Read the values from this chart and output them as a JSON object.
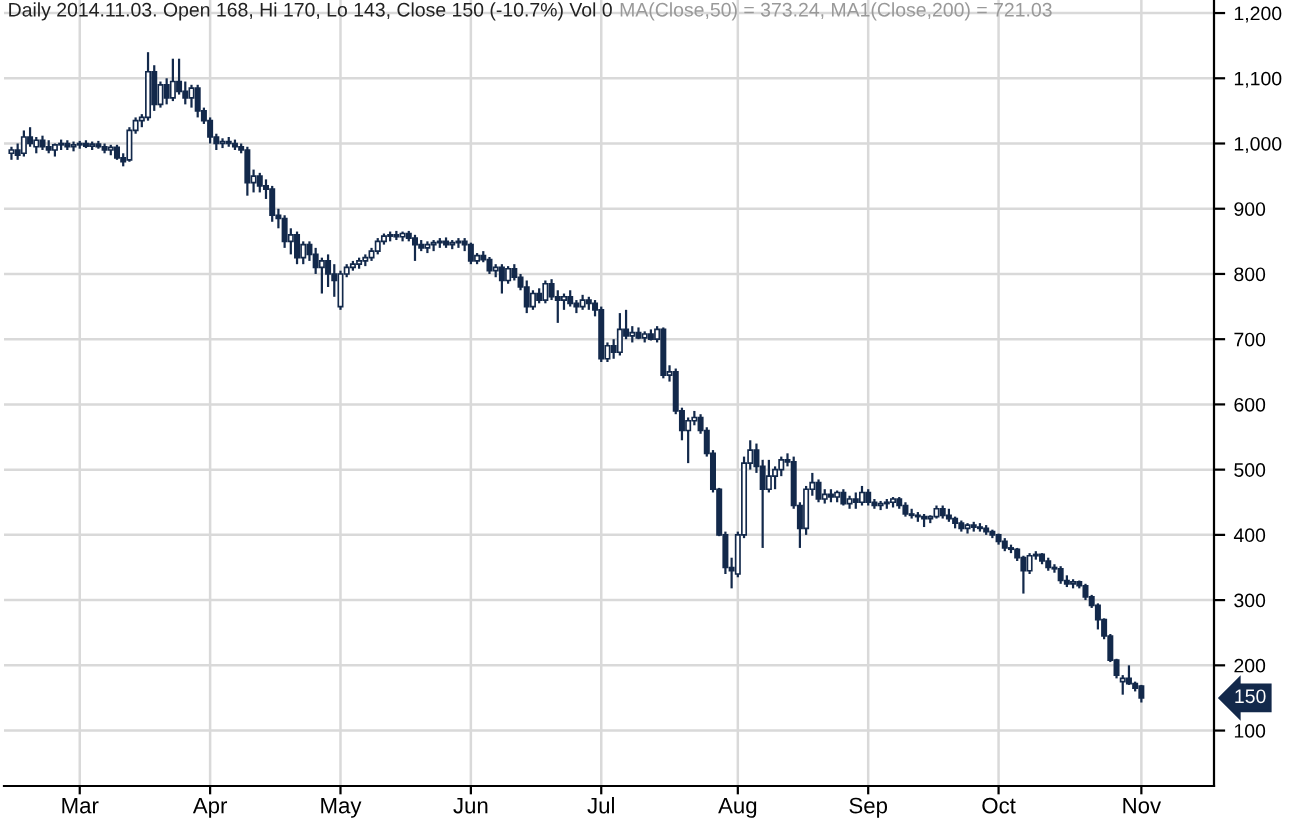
{
  "chart_data": {
    "type": "candlestick",
    "title": "Daily 2014.11.03. Open 168, Hi 170, Lo 143, Close 150 (-10.7%) Vol 0",
    "subtitle": "MA(Close,50) = 373.24, MA1(Close,200) = 721.03",
    "categories": [
      null,
      null,
      null,
      null,
      null,
      null,
      null,
      null,
      null,
      null,
      null,
      "Mar",
      null,
      null,
      null,
      null,
      null,
      null,
      null,
      null,
      null,
      null,
      null,
      null,
      null,
      null,
      null,
      null,
      null,
      null,
      null,
      null,
      "Apr",
      null,
      null,
      null,
      null,
      null,
      null,
      null,
      null,
      null,
      null,
      null,
      null,
      null,
      null,
      null,
      null,
      null,
      null,
      null,
      null,
      "May",
      null,
      null,
      null,
      null,
      null,
      null,
      null,
      null,
      null,
      null,
      null,
      null,
      null,
      null,
      null,
      null,
      null,
      null,
      null,
      null,
      "Jun",
      null,
      null,
      null,
      null,
      null,
      null,
      null,
      null,
      null,
      null,
      null,
      null,
      null,
      null,
      null,
      null,
      null,
      null,
      null,
      null,
      "Jul",
      null,
      null,
      null,
      null,
      null,
      null,
      null,
      null,
      null,
      null,
      null,
      null,
      null,
      null,
      null,
      null,
      null,
      null,
      null,
      null,
      null,
      "Aug",
      null,
      null,
      null,
      null,
      null,
      null,
      null,
      null,
      null,
      null,
      null,
      null,
      null,
      null,
      null,
      null,
      null,
      null,
      null,
      null,
      "Sep",
      null,
      null,
      null,
      null,
      null,
      null,
      null,
      null,
      null,
      null,
      null,
      null,
      null,
      null,
      null,
      null,
      null,
      null,
      null,
      null,
      "Oct",
      null,
      null,
      null,
      null,
      null,
      null,
      null,
      null,
      null,
      null,
      null,
      null,
      null,
      null,
      null,
      null,
      null,
      null,
      null,
      null,
      null,
      null,
      "Nov",
      null,
      null,
      null,
      null,
      null,
      null,
      null,
      null,
      null,
      null,
      null
    ],
    "series": [
      {
        "color": "#13294b",
        "ohlc": [
          [
            985,
            995,
            975,
            990
          ],
          [
            990,
            1000,
            975,
            982
          ],
          [
            985,
            1020,
            980,
            1010
          ],
          [
            1010,
            1025,
            995,
            1000
          ],
          [
            995,
            1010,
            985,
            1005
          ],
          [
            1005,
            1012,
            990,
            995
          ],
          [
            995,
            1005,
            985,
            990
          ],
          [
            990,
            1000,
            980,
            998
          ],
          [
            998,
            1006,
            990,
            1000
          ],
          [
            1000,
            1005,
            990,
            995
          ],
          [
            995,
            1003,
            988,
            998
          ],
          [
            998,
            1004,
            992,
            1000
          ],
          [
            1000,
            1005,
            993,
            996
          ],
          [
            996,
            1003,
            990,
            999
          ],
          [
            999,
            1004,
            992,
            995
          ],
          [
            995,
            1000,
            985,
            990
          ],
          [
            990,
            998,
            982,
            994
          ],
          [
            994,
            998,
            975,
            978
          ],
          [
            978,
            985,
            965,
            972
          ],
          [
            975,
            1025,
            972,
            1020
          ],
          [
            1020,
            1040,
            1015,
            1035
          ],
          [
            1035,
            1045,
            1025,
            1040
          ],
          [
            1040,
            1140,
            1035,
            1110
          ],
          [
            1110,
            1120,
            1050,
            1060
          ],
          [
            1060,
            1095,
            1055,
            1090
          ],
          [
            1090,
            1100,
            1060,
            1070
          ],
          [
            1070,
            1130,
            1065,
            1095
          ],
          [
            1095,
            1130,
            1075,
            1080
          ],
          [
            1080,
            1095,
            1060,
            1070
          ],
          [
            1070,
            1090,
            1055,
            1085
          ],
          [
            1085,
            1090,
            1040,
            1050
          ],
          [
            1050,
            1055,
            1030,
            1035
          ],
          [
            1035,
            1040,
            1000,
            1010
          ],
          [
            1010,
            1015,
            990,
            1000
          ],
          [
            1000,
            1008,
            993,
            1003
          ],
          [
            1003,
            1010,
            995,
            1000
          ],
          [
            1000,
            1006,
            990,
            995
          ],
          [
            995,
            1000,
            985,
            990
          ],
          [
            990,
            995,
            920,
            940
          ],
          [
            940,
            960,
            925,
            950
          ],
          [
            950,
            955,
            925,
            935
          ],
          [
            935,
            945,
            915,
            930
          ],
          [
            930,
            935,
            880,
            890
          ],
          [
            890,
            900,
            870,
            885
          ],
          [
            885,
            890,
            840,
            850
          ],
          [
            850,
            870,
            830,
            860
          ],
          [
            860,
            865,
            815,
            825
          ],
          [
            825,
            850,
            815,
            845
          ],
          [
            845,
            850,
            820,
            830
          ],
          [
            830,
            840,
            800,
            810
          ],
          [
            810,
            825,
            770,
            820
          ],
          [
            820,
            830,
            780,
            800
          ],
          [
            800,
            815,
            765,
            790
          ],
          [
            750,
            805,
            745,
            800
          ],
          [
            800,
            815,
            795,
            810
          ],
          [
            810,
            820,
            805,
            815
          ],
          [
            815,
            825,
            808,
            820
          ],
          [
            820,
            830,
            812,
            825
          ],
          [
            825,
            840,
            820,
            835
          ],
          [
            835,
            855,
            830,
            850
          ],
          [
            850,
            862,
            845,
            858
          ],
          [
            858,
            865,
            850,
            860
          ],
          [
            860,
            866,
            852,
            857
          ],
          [
            857,
            865,
            850,
            862
          ],
          [
            862,
            866,
            850,
            855
          ],
          [
            855,
            860,
            820,
            845
          ],
          [
            845,
            852,
            835,
            840
          ],
          [
            840,
            850,
            832,
            845
          ],
          [
            845,
            852,
            835,
            848
          ],
          [
            848,
            855,
            840,
            850
          ],
          [
            850,
            856,
            840,
            845
          ],
          [
            845,
            852,
            838,
            848
          ],
          [
            848,
            855,
            840,
            850
          ],
          [
            850,
            855,
            835,
            845
          ],
          [
            845,
            848,
            815,
            820
          ],
          [
            820,
            832,
            815,
            828
          ],
          [
            828,
            835,
            818,
            822
          ],
          [
            822,
            826,
            800,
            805
          ],
          [
            805,
            815,
            795,
            810
          ],
          [
            810,
            815,
            770,
            790
          ],
          [
            790,
            812,
            785,
            808
          ],
          [
            808,
            815,
            790,
            795
          ],
          [
            795,
            800,
            775,
            780
          ],
          [
            780,
            790,
            740,
            750
          ],
          [
            750,
            775,
            745,
            770
          ],
          [
            770,
            778,
            755,
            760
          ],
          [
            760,
            790,
            755,
            785
          ],
          [
            785,
            792,
            760,
            765
          ],
          [
            765,
            775,
            725,
            760
          ],
          [
            760,
            770,
            745,
            765
          ],
          [
            765,
            775,
            750,
            755
          ],
          [
            755,
            760,
            740,
            750
          ],
          [
            750,
            768,
            745,
            760
          ],
          [
            760,
            765,
            745,
            755
          ],
          [
            755,
            760,
            735,
            745
          ],
          [
            745,
            750,
            665,
            670
          ],
          [
            670,
            695,
            665,
            690
          ],
          [
            690,
            700,
            670,
            680
          ],
          [
            680,
            740,
            675,
            715
          ],
          [
            715,
            745,
            700,
            705
          ],
          [
            705,
            720,
            695,
            710
          ],
          [
            710,
            718,
            700,
            702
          ],
          [
            702,
            712,
            695,
            708
          ],
          [
            708,
            715,
            698,
            700
          ],
          [
            700,
            720,
            695,
            715
          ],
          [
            715,
            718,
            640,
            645
          ],
          [
            645,
            660,
            635,
            650
          ],
          [
            650,
            655,
            585,
            590
          ],
          [
            590,
            595,
            545,
            560
          ],
          [
            560,
            580,
            510,
            575
          ],
          [
            575,
            590,
            568,
            580
          ],
          [
            580,
            585,
            555,
            560
          ],
          [
            560,
            565,
            520,
            525
          ],
          [
            525,
            530,
            465,
            470
          ],
          [
            470,
            472,
            398,
            400
          ],
          [
            400,
            405,
            340,
            350
          ],
          [
            350,
            365,
            318,
            345
          ],
          [
            340,
            405,
            335,
            400
          ],
          [
            400,
            520,
            395,
            510
          ],
          [
            510,
            545,
            500,
            530
          ],
          [
            530,
            540,
            495,
            505
          ],
          [
            505,
            515,
            380,
            470
          ],
          [
            470,
            515,
            465,
            490
          ],
          [
            490,
            505,
            470,
            500
          ],
          [
            500,
            520,
            490,
            515
          ],
          [
            515,
            525,
            505,
            512
          ],
          [
            512,
            520,
            440,
            445
          ],
          [
            445,
            450,
            380,
            410
          ],
          [
            410,
            475,
            400,
            470
          ],
          [
            470,
            495,
            460,
            480
          ],
          [
            480,
            485,
            450,
            455
          ],
          [
            455,
            470,
            448,
            462
          ],
          [
            462,
            470,
            450,
            458
          ],
          [
            458,
            468,
            450,
            465
          ],
          [
            465,
            470,
            445,
            448
          ],
          [
            448,
            460,
            440,
            455
          ],
          [
            455,
            465,
            440,
            450
          ],
          [
            450,
            475,
            445,
            465
          ],
          [
            465,
            470,
            445,
            450
          ],
          [
            450,
            455,
            440,
            445
          ],
          [
            445,
            452,
            438,
            448
          ],
          [
            448,
            455,
            440,
            450
          ],
          [
            450,
            458,
            442,
            455
          ],
          [
            455,
            458,
            440,
            445
          ],
          [
            445,
            450,
            428,
            432
          ],
          [
            432,
            440,
            425,
            430
          ],
          [
            430,
            435,
            420,
            428
          ],
          [
            428,
            432,
            412,
            425
          ],
          [
            425,
            430,
            418,
            428
          ],
          [
            428,
            445,
            425,
            440
          ],
          [
            440,
            445,
            425,
            430
          ],
          [
            430,
            440,
            420,
            425
          ],
          [
            425,
            428,
            410,
            418
          ],
          [
            418,
            422,
            405,
            410
          ],
          [
            410,
            418,
            402,
            415
          ],
          [
            415,
            420,
            405,
            412
          ],
          [
            412,
            418,
            405,
            410
          ],
          [
            410,
            415,
            400,
            405
          ],
          [
            405,
            408,
            395,
            400
          ],
          [
            400,
            402,
            385,
            390
          ],
          [
            390,
            395,
            375,
            380
          ],
          [
            380,
            385,
            372,
            378
          ],
          [
            378,
            380,
            360,
            365
          ],
          [
            365,
            368,
            310,
            345
          ],
          [
            345,
            372,
            340,
            368
          ],
          [
            368,
            375,
            362,
            370
          ],
          [
            370,
            372,
            355,
            360
          ],
          [
            360,
            365,
            345,
            350
          ],
          [
            350,
            355,
            342,
            348
          ],
          [
            348,
            352,
            325,
            330
          ],
          [
            330,
            338,
            320,
            325
          ],
          [
            325,
            332,
            318,
            328
          ],
          [
            328,
            330,
            318,
            322
          ],
          [
            322,
            325,
            300,
            305
          ],
          [
            305,
            308,
            288,
            292
          ],
          [
            292,
            295,
            255,
            270
          ],
          [
            270,
            272,
            240,
            245
          ],
          [
            245,
            248,
            205,
            208
          ],
          [
            208,
            210,
            180,
            185
          ],
          [
            175,
            185,
            155,
            180
          ],
          [
            180,
            200,
            170,
            172
          ],
          [
            172,
            175,
            160,
            165
          ],
          [
            168,
            170,
            143,
            150
          ],
          null,
          null,
          null,
          null,
          null,
          null,
          null,
          null,
          null,
          null,
          null
        ]
      }
    ],
    "ylim": [
      15,
      1220
    ],
    "yticks": [
      100,
      200,
      300,
      400,
      500,
      600,
      700,
      800,
      900,
      {
        "value": 1000,
        "label": "1,000"
      },
      {
        "value": 1100,
        "label": "1,100"
      },
      {
        "value": 1200,
        "label": "1,200"
      }
    ],
    "grid": true,
    "annotations": [
      "150"
    ]
  }
}
